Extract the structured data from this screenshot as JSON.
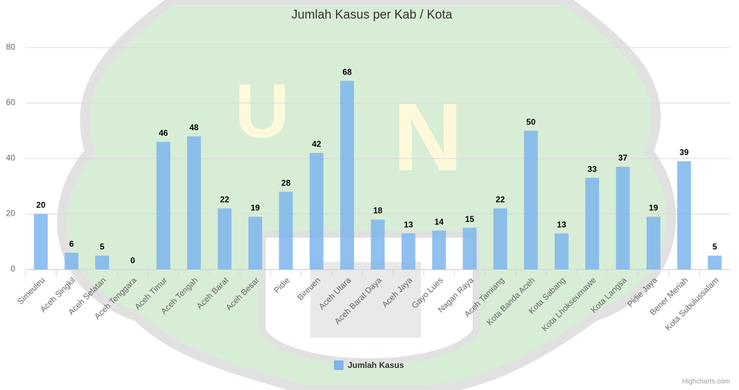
{
  "chart_data": {
    "type": "bar",
    "title": "Jumlah Kasus per Kab / Kota",
    "categories": [
      "Simeuleu",
      "Aceh Singkil",
      "Aceh Selatan",
      "Aceh Tenggara",
      "Aceh Timur",
      "Aceh Tengah",
      "Aceh Barat",
      "Aceh Besar",
      "Pidie",
      "Bireuen",
      "Aceh Utara",
      "Aceh Barat Daya",
      "Aceh Jaya",
      "Gayo Lues",
      "Nagan Raya",
      "Aceh Tamiang",
      "Kota Banda Aceh",
      "Kota Sabang",
      "Kota Lhokseumawe",
      "Kota Langsa",
      "Pidie Jaya",
      "Bener Meriah",
      "Kota Subulussalam"
    ],
    "series": [
      {
        "name": "Jumlah Kasus",
        "color": "#7cb5ec",
        "values": [
          20,
          6,
          5,
          0,
          46,
          48,
          22,
          19,
          28,
          42,
          68,
          18,
          13,
          14,
          15,
          22,
          50,
          13,
          33,
          37,
          19,
          39,
          5
        ]
      }
    ],
    "ylim": [
      0,
      80
    ],
    "yticks": [
      0,
      20,
      40,
      60,
      80
    ],
    "grid": true
  },
  "credits": "Highcharts.com"
}
